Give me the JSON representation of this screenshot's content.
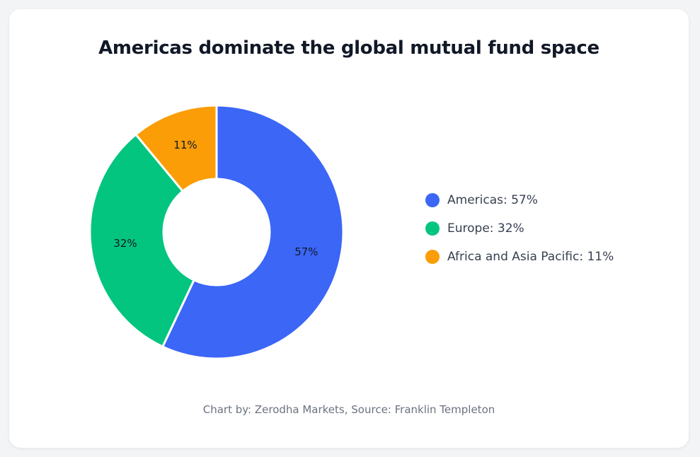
{
  "chart_data": {
    "type": "pie",
    "variant": "donut",
    "title": "Americas dominate the global mutual fund space",
    "categories": [
      "Americas",
      "Europe",
      "Africa and Asia Pacific"
    ],
    "values": [
      57,
      32,
      11
    ],
    "unit": "%",
    "slice_labels": [
      "57%",
      "32%",
      "11%"
    ],
    "colors": [
      "#3b66f6",
      "#04c57f",
      "#fa9d07"
    ],
    "legend": {
      "placement": "right",
      "entries": [
        "Americas: 57%",
        "Europe: 32%",
        "Africa and Asia Pacific: 11%"
      ]
    }
  },
  "footer": {
    "credit": "Chart by: Zerodha Markets, Source: Franklin Templeton"
  }
}
